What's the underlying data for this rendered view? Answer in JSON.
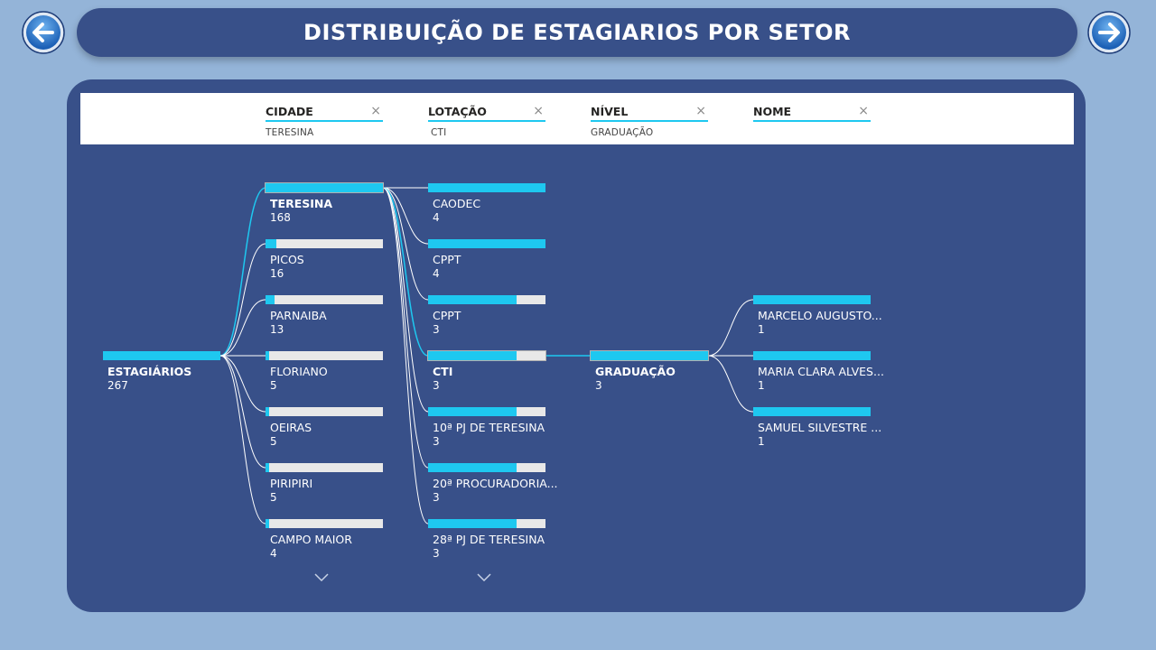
{
  "title": "DISTRIBUIÇÃO DE ESTAGIARIOS POR SETOR",
  "nav": {
    "back_icon": "arrow-left-icon",
    "next_icon": "arrow-right-icon"
  },
  "colors": {
    "accent": "#1ec8f0",
    "panel": "#385089",
    "background": "#94b4d8"
  },
  "slicers": [
    {
      "name": "CIDADE",
      "value": "TERESINA"
    },
    {
      "name": "LOTAÇÃO",
      "value": "CTI"
    },
    {
      "name": "NÍVEL",
      "value": "GRADUAÇÃO"
    },
    {
      "name": "NOME",
      "value": ""
    }
  ],
  "slicer_clear_glyph": "×",
  "tree": {
    "root": {
      "label": "ESTAGIÁRIOS",
      "value": "267",
      "fill": 1.0
    },
    "level1": [
      {
        "label": "TERESINA",
        "value": "168",
        "fill": 1.0,
        "selected": true
      },
      {
        "label": "PICOS",
        "value": "16",
        "fill": 0.095
      },
      {
        "label": "PARNAIBA",
        "value": "13",
        "fill": 0.077
      },
      {
        "label": "FLORIANO",
        "value": "5",
        "fill": 0.03
      },
      {
        "label": "OEIRAS",
        "value": "5",
        "fill": 0.03
      },
      {
        "label": "PIRIPIRI",
        "value": "5",
        "fill": 0.03
      },
      {
        "label": "CAMPO MAIOR",
        "value": "4",
        "fill": 0.024
      }
    ],
    "level2": [
      {
        "label": "CAODEC",
        "value": "4",
        "fill": 1.0
      },
      {
        "label": "CPPT",
        "value": "4",
        "fill": 1.0
      },
      {
        "label": "CPPT",
        "value": "3",
        "fill": 0.75
      },
      {
        "label": "CTI",
        "value": "3",
        "fill": 0.75,
        "selected": true
      },
      {
        "label": "10ª PJ DE TERESINA",
        "value": "3",
        "fill": 0.75
      },
      {
        "label": "20ª PROCURADORIA...",
        "value": "3",
        "fill": 0.75
      },
      {
        "label": "28ª PJ DE TERESINA",
        "value": "3",
        "fill": 0.75
      }
    ],
    "level3": [
      {
        "label": "GRADUAÇÃO",
        "value": "3",
        "fill": 1.0,
        "selected": true
      }
    ],
    "level4": [
      {
        "label": "MARCELO AUGUSTO...",
        "value": "1",
        "fill": 1.0
      },
      {
        "label": "MARIA CLARA ALVES...",
        "value": "1",
        "fill": 1.0
      },
      {
        "label": "SAMUEL SILVESTRE ...",
        "value": "1",
        "fill": 1.0
      }
    ],
    "more_icon": "chevron-down-icon"
  }
}
